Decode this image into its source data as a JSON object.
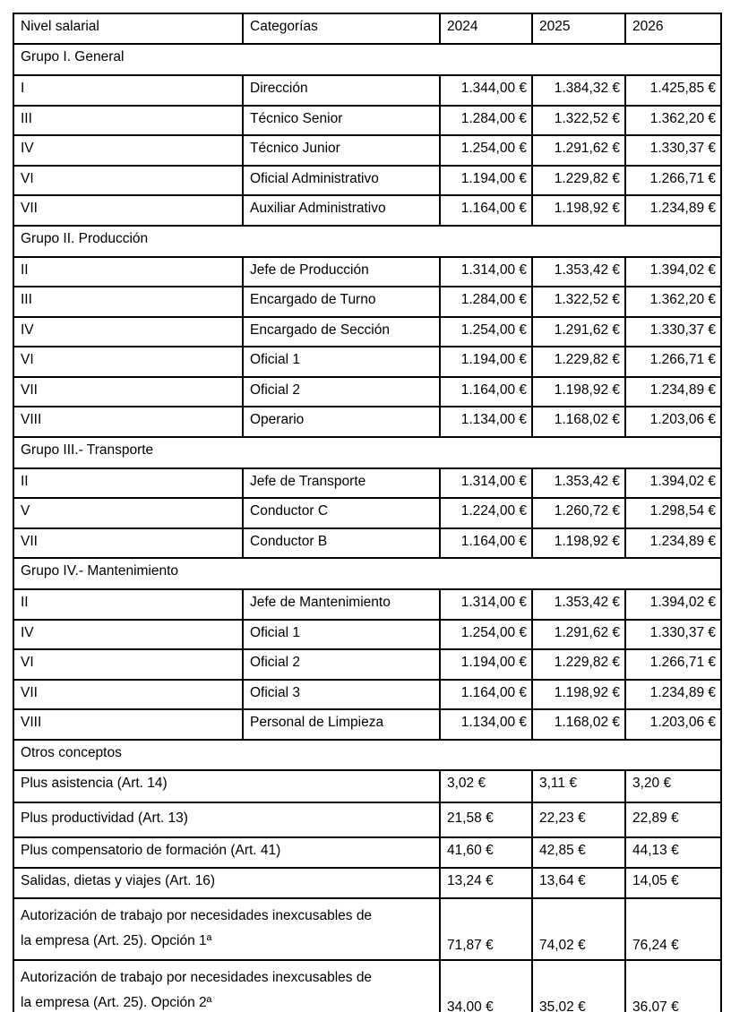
{
  "table": {
    "columns": [
      "Nivel salarial",
      "Categorías",
      "2024",
      "2025",
      "2026"
    ],
    "currency": "EUR",
    "sections": [
      {
        "title": "Grupo I. General",
        "rows": [
          {
            "level": "I",
            "category": "Dirección",
            "values": [
              "1.344,00 €",
              "1.384,32 €",
              "1.425,85 €"
            ]
          },
          {
            "level": "III",
            "category": "Técnico Senior",
            "values": [
              "1.284,00 €",
              "1.322,52 €",
              "1.362,20 €"
            ]
          },
          {
            "level": "IV",
            "category": "Técnico Junior",
            "values": [
              "1.254,00 €",
              "1.291,62 €",
              "1.330,37 €"
            ]
          },
          {
            "level": "VI",
            "category": "Oficial Administrativo",
            "values": [
              "1.194,00 €",
              "1.229,82 €",
              "1.266,71 €"
            ]
          },
          {
            "level": "VII",
            "category": "Auxiliar Administrativo",
            "values": [
              "1.164,00 €",
              "1.198,92 €",
              "1.234,89 €"
            ]
          }
        ]
      },
      {
        "title": "Grupo II. Producción",
        "rows": [
          {
            "level": "II",
            "category": "Jefe de Producción",
            "values": [
              "1.314,00 €",
              "1.353,42 €",
              "1.394,02 €"
            ]
          },
          {
            "level": "III",
            "category": "Encargado de Turno",
            "values": [
              "1.284,00 €",
              "1.322,52 €",
              "1.362,20 €"
            ]
          },
          {
            "level": "IV",
            "category": "Encargado de Sección",
            "values": [
              "1.254,00 €",
              "1.291,62 €",
              "1.330,37 €"
            ]
          },
          {
            "level": "VI",
            "category": "Oficial 1",
            "values": [
              "1.194,00 €",
              "1.229,82 €",
              "1.266,71 €"
            ]
          },
          {
            "level": "VII",
            "category": "Oficial 2",
            "values": [
              "1.164,00 €",
              "1.198,92 €",
              "1.234,89 €"
            ]
          },
          {
            "level": "VIII",
            "category": "Operario",
            "values": [
              "1.134,00 €",
              "1.168,02 €",
              "1.203,06 €"
            ]
          }
        ]
      },
      {
        "title": "Grupo III.- Transporte",
        "rows": [
          {
            "level": "II",
            "category": "Jefe de Transporte",
            "values": [
              "1.314,00 €",
              "1.353,42 €",
              "1.394,02 €"
            ]
          },
          {
            "level": "V",
            "category": "Conductor C",
            "values": [
              "1.224,00 €",
              "1.260,72 €",
              "1.298,54 €"
            ]
          },
          {
            "level": "VII",
            "category": "Conductor B",
            "values": [
              "1.164,00 €",
              "1.198,92 €",
              "1.234,89 €"
            ]
          }
        ]
      },
      {
        "title": "Grupo IV.- Mantenimiento",
        "rows": [
          {
            "level": "II",
            "category": "Jefe de Mantenimiento",
            "values": [
              "1.314,00 €",
              "1.353,42 €",
              "1.394,02 €"
            ]
          },
          {
            "level": "IV",
            "category": "Oficial 1",
            "values": [
              "1.254,00 €",
              "1.291,62 €",
              "1.330,37 €"
            ]
          },
          {
            "level": "VI",
            "category": "Oficial 2",
            "values": [
              "1.194,00 €",
              "1.229,82 €",
              "1.266,71 €"
            ]
          },
          {
            "level": "VII",
            "category": "Oficial 3",
            "values": [
              "1.164,00 €",
              "1.198,92 €",
              "1.234,89 €"
            ]
          },
          {
            "level": "VIII",
            "category": "Personal de Limpieza",
            "values": [
              "1.134,00 €",
              "1.168,02 €",
              "1.203,06 €"
            ]
          }
        ]
      }
    ],
    "otros": {
      "title": "Otros conceptos",
      "rows": [
        {
          "style": "normal",
          "label": "Plus asistencia (Art. 14)",
          "values": [
            "3,02 €",
            "3,11 €",
            "3,20 €"
          ]
        },
        {
          "style": "tallpad",
          "label": "Plus productividad (Art. 13)",
          "values": [
            "21,58 €",
            "22,23 €",
            "22,89 €"
          ]
        },
        {
          "style": "small",
          "label": "Plus compensatorio de formación (Art. 41)",
          "values": [
            "41,60 €",
            "42,85 €",
            "44,13 €"
          ]
        },
        {
          "style": "small",
          "label": "Salidas, dietas y viajes (Art. 16)",
          "values": [
            "13,24 €",
            "13,64 €",
            "14,05 €"
          ]
        },
        {
          "style": "twoline",
          "label_line1": "Autorización de trabajo por necesidades inexcusables de",
          "label_line2": "la empresa (Art. 25). Opción 1ª",
          "values": [
            "71,87 €",
            "74,02 €",
            "76,24 €"
          ]
        },
        {
          "style": "twoline",
          "label_line1": "Autorización de trabajo por necesidades inexcusables de",
          "label_line2": "la empresa (Art. 25). Opción 2ª",
          "values": [
            "34,00 €",
            "35,02 €",
            "36,07 €"
          ]
        }
      ]
    }
  }
}
